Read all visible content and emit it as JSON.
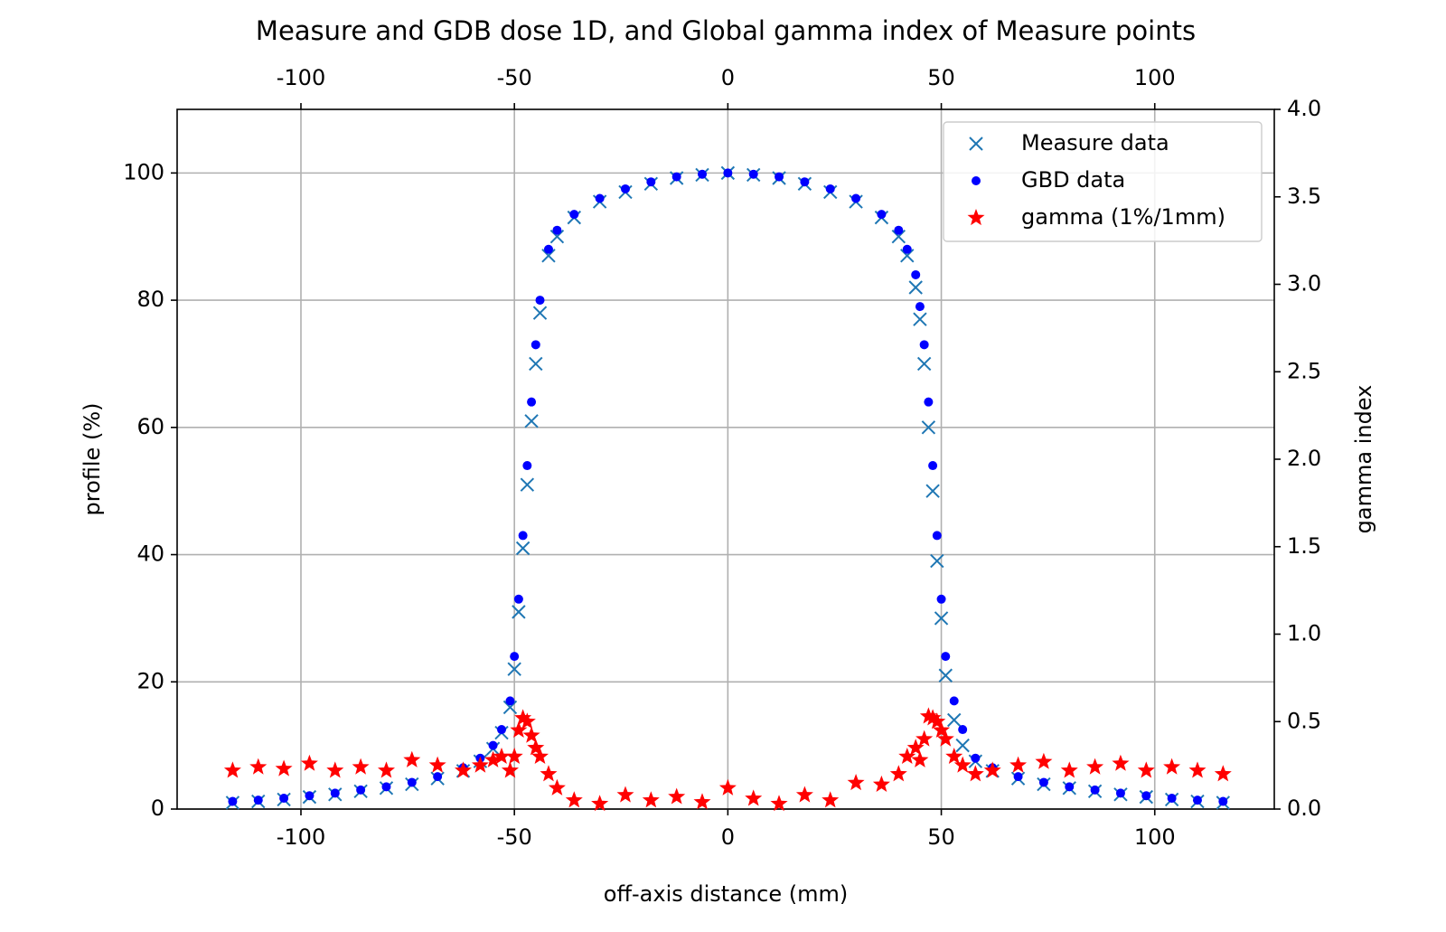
{
  "chart_data": {
    "type": "scatter",
    "title": "Measure and GDB dose 1D, and Global gamma index of Measure points",
    "x_label": "off-axis distance (mm)",
    "y_label": "profile (%)",
    "y2_label": "gamma index",
    "xlim": [
      -129,
      128
    ],
    "ylim": [
      0,
      110
    ],
    "y2lim": [
      0,
      4
    ],
    "xticks": [
      -100,
      -50,
      0,
      50,
      100
    ],
    "yticks": [
      0,
      20,
      40,
      60,
      80,
      100
    ],
    "y2ticks": [
      {
        "value": 0,
        "label": "0.0"
      },
      {
        "value": 0.5,
        "label": "0.5"
      },
      {
        "value": 1,
        "label": "1.0"
      },
      {
        "value": 1.5,
        "label": "1.5"
      },
      {
        "value": 2,
        "label": "2.0"
      },
      {
        "value": 2.5,
        "label": "2.5"
      },
      {
        "value": 3,
        "label": "3.0"
      },
      {
        "value": 3.5,
        "label": "3.5"
      },
      {
        "value": 4,
        "label": "4.0"
      }
    ],
    "grid": true,
    "legend": "upper right",
    "x": [
      -116,
      -110,
      -104,
      -98,
      -92,
      -86,
      -80,
      -74,
      -68,
      -62,
      -58,
      -55,
      -53,
      -51,
      -50,
      -49,
      -48,
      -47,
      -46,
      -45,
      -44,
      -42,
      -40,
      -36,
      -30,
      -24,
      -18,
      -12,
      -6,
      0,
      6,
      12,
      18,
      24,
      30,
      36,
      40,
      42,
      44,
      45,
      46,
      47,
      48,
      49,
      50,
      51,
      53,
      55,
      58,
      62,
      68,
      74,
      80,
      86,
      92,
      98,
      104,
      110,
      116
    ],
    "series": [
      {
        "name": "Measure data",
        "color": "#1f77b4",
        "marker": "x",
        "values": [
          1,
          1.2,
          1.5,
          1.9,
          2.3,
          2.8,
          3.3,
          3.9,
          4.8,
          6,
          7.5,
          9.5,
          12,
          16,
          22,
          31,
          41,
          51,
          61,
          70,
          78,
          87,
          90,
          93,
          95.5,
          97,
          98.3,
          99.2,
          99.7,
          100,
          99.7,
          99.2,
          98.3,
          97,
          95.5,
          93,
          90,
          87,
          82,
          77,
          70,
          60,
          50,
          39,
          30,
          21,
          14,
          10,
          7.5,
          6,
          4.8,
          3.9,
          3.3,
          2.8,
          2.3,
          1.9,
          1.5,
          1.2,
          1
        ]
      },
      {
        "name": "GBD data",
        "color": "#0000ff",
        "marker": "dot",
        "values": [
          1.2,
          1.4,
          1.7,
          2.1,
          2.5,
          3,
          3.5,
          4.2,
          5.1,
          6.5,
          8,
          10,
          12.5,
          17,
          24,
          33,
          43,
          54,
          64,
          73,
          80,
          88,
          91,
          93.5,
          96,
          97.5,
          98.6,
          99.4,
          99.8,
          100,
          99.8,
          99.4,
          98.6,
          97.5,
          96,
          93.5,
          91,
          88,
          84,
          79,
          73,
          64,
          54,
          43,
          33,
          24,
          17,
          12.5,
          8,
          6.5,
          5.1,
          4.2,
          3.5,
          3,
          2.5,
          2.1,
          1.7,
          1.4,
          1.2
        ]
      },
      {
        "name": "gamma (1%/1mm)",
        "color": "#ff0000",
        "marker": "star",
        "axis": "y2",
        "values": [
          0.22,
          0.24,
          0.23,
          0.26,
          0.22,
          0.24,
          0.22,
          0.28,
          0.25,
          0.22,
          0.25,
          0.28,
          0.3,
          0.22,
          0.3,
          0.45,
          0.52,
          0.5,
          0.42,
          0.35,
          0.3,
          0.2,
          0.12,
          0.05,
          0.03,
          0.08,
          0.05,
          0.07,
          0.04,
          0.12,
          0.06,
          0.03,
          0.08,
          0.05,
          0.15,
          0.14,
          0.2,
          0.3,
          0.35,
          0.28,
          0.4,
          0.53,
          0.52,
          0.5,
          0.45,
          0.4,
          0.3,
          0.25,
          0.2,
          0.22,
          0.25,
          0.27,
          0.22,
          0.24,
          0.26,
          0.22,
          0.24,
          0.22,
          0.2
        ]
      }
    ]
  }
}
